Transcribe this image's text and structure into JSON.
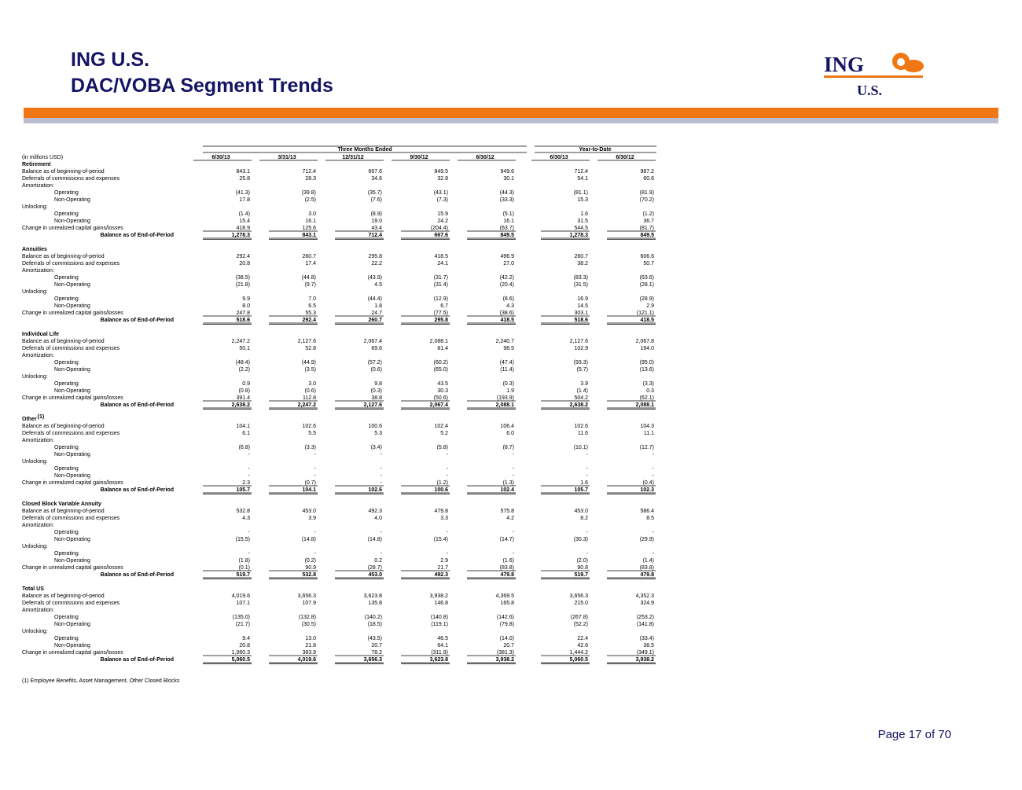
{
  "header": {
    "company": "ING U.S.",
    "title": "DAC/VOBA Segment Trends"
  },
  "logo": {
    "name": "ING",
    "sub": "U.S."
  },
  "table": {
    "group_headers": [
      "Three Months Ended",
      "Year-to-Date"
    ],
    "units": "(in millions USD)",
    "columns": [
      "6/30/13",
      "3/31/13",
      "12/31/12",
      "9/30/12",
      "6/30/12",
      "6/30/13",
      "6/30/12"
    ],
    "sections": [
      {
        "title": "Retirement",
        "rows": [
          {
            "label": "Balance as of beginning-of-period",
            "values": [
              "843.1",
              "712.4",
              "667.6",
              "849.5",
              "949.6",
              "712.4",
              "987.2"
            ]
          },
          {
            "label": "Deferrals of commissions and expenses",
            "values": [
              "25.8",
              "28.3",
              "34.6",
              "32.8",
              "30.1",
              "54.1",
              "60.6"
            ]
          },
          {
            "label": "Amortization:"
          },
          {
            "label": "Operating",
            "values": [
              "(41.3)",
              "(39.8)",
              "(35.7)",
              "(43.1)",
              "(44.3)",
              "(81.1)",
              "(81.9)"
            ]
          },
          {
            "label": "Non-Operating",
            "values": [
              "17.8",
              "(2.5)",
              "(7.6)",
              "(7.3)",
              "(33.3)",
              "15.3",
              "(70.2)"
            ]
          },
          {
            "label": "Unlocking:"
          },
          {
            "label": "Operating",
            "values": [
              "(1.4)",
              "3.0",
              "(8.9)",
              "15.9",
              "(5.1)",
              "1.6",
              "(1.2)"
            ]
          },
          {
            "label": "Non-Operating",
            "values": [
              "15.4",
              "16.1",
              "19.0",
              "24.2",
              "16.1",
              "31.5",
              "36.7"
            ]
          },
          {
            "label": "Change in unrealized capital gains/losses",
            "values": [
              "418.9",
              "125.6",
              "43.4",
              "(204.4)",
              "(63.7)",
              "544.5",
              "(81.7)"
            ]
          },
          {
            "label": "Balance as of End-of-Period",
            "values": [
              "1,278.3",
              "843.1",
              "712.4",
              "667.6",
              "849.5",
              "1,278.3",
              "849.5"
            ]
          }
        ]
      },
      {
        "title": "Annuities",
        "rows": [
          {
            "label": "Balance as of beginning-of-period",
            "values": [
              "292.4",
              "260.7",
              "295.8",
              "418.5",
              "496.9",
              "260.7",
              "606.6"
            ]
          },
          {
            "label": "Deferrals of commissions and expenses",
            "values": [
              "20.8",
              "17.4",
              "22.2",
              "24.1",
              "27.0",
              "38.2",
              "50.7"
            ]
          },
          {
            "label": "Amortization:"
          },
          {
            "label": "Operating",
            "values": [
              "(38.5)",
              "(44.8)",
              "(43.9)",
              "(31.7)",
              "(42.2)",
              "(83.3)",
              "(63.6)"
            ]
          },
          {
            "label": "Non-Operating",
            "values": [
              "(21.8)",
              "(9.7)",
              "4.5",
              "(31.4)",
              "(20.4)",
              "(31.5)",
              "(28.1)"
            ]
          },
          {
            "label": "Unlocking:"
          },
          {
            "label": "Operating",
            "values": [
              "9.9",
              "7.0",
              "(44.4)",
              "(12.9)",
              "(8.6)",
              "16.9",
              "(28.9)"
            ]
          },
          {
            "label": "Non-Operating",
            "values": [
              "8.0",
              "6.5",
              "1.8",
              "6.7",
              "4.3",
              "14.5",
              "2.9"
            ]
          },
          {
            "label": "Change in unrealized capital gains/losses",
            "values": [
              "247.8",
              "55.3",
              "24.7",
              "(77.5)",
              "(38.6)",
              "303.1",
              "(121.1)"
            ]
          },
          {
            "label": "Balance as of End-of-Period",
            "values": [
              "518.6",
              "292.4",
              "260.7",
              "295.8",
              "418.5",
              "518.6",
              "418.5"
            ]
          }
        ]
      },
      {
        "title": "Individual Life",
        "rows": [
          {
            "label": "Balance as of beginning-of-period",
            "values": [
              "2,247.2",
              "2,127.6",
              "2,067.4",
              "2,088.1",
              "2,240.7",
              "2,127.6",
              "2,067.8"
            ]
          },
          {
            "label": "Deferrals of commissions and expenses",
            "values": [
              "50.1",
              "52.8",
              "69.6",
              "81.4",
              "98.5",
              "102.9",
              "194.0"
            ]
          },
          {
            "label": "Amortization:"
          },
          {
            "label": "Operating",
            "values": [
              "(48.4)",
              "(44.9)",
              "(57.2)",
              "(60.2)",
              "(47.4)",
              "(93.3)",
              "(95.0)"
            ]
          },
          {
            "label": "Non-Operating",
            "values": [
              "(2.2)",
              "(3.5)",
              "(0.6)",
              "(65.0)",
              "(11.4)",
              "(5.7)",
              "(13.6)"
            ]
          },
          {
            "label": "Unlocking:"
          },
          {
            "label": "Operating",
            "values": [
              "0.9",
              "3.0",
              "9.8",
              "43.5",
              "(0.3)",
              "3.9",
              "(3.3)"
            ]
          },
          {
            "label": "Non-Operating",
            "values": [
              "(0.8)",
              "(0.6)",
              "(0.3)",
              "30.3",
              "1.9",
              "(1.4)",
              "0.3"
            ]
          },
          {
            "label": "Change in unrealized capital gains/losses",
            "values": [
              "391.4",
              "112.8",
              "38.8",
              "(50.6)",
              "(193.9)",
              "504.2",
              "(62.1)"
            ]
          },
          {
            "label": "Balance as of End-of-Period",
            "values": [
              "2,638.2",
              "2,247.2",
              "2,127.6",
              "2,067.4",
              "2,088.1",
              "2,638.2",
              "2,088.1"
            ]
          }
        ]
      },
      {
        "title": "Other",
        "title_note": "(1)",
        "rows": [
          {
            "label": "Balance as of beginning-of-period",
            "values": [
              "104.1",
              "102.6",
              "100.6",
              "102.4",
              "106.4",
              "102.6",
              "104.3"
            ]
          },
          {
            "label": "Deferrals of commissions and expenses",
            "values": [
              "6.1",
              "5.5",
              "5.3",
              "5.2",
              "6.0",
              "11.6",
              "11.1"
            ]
          },
          {
            "label": "Amortization:"
          },
          {
            "label": "Operating",
            "values": [
              "(6.8)",
              "(3.3)",
              "(3.4)",
              "(5.8)",
              "(8.7)",
              "(10.1)",
              "(12.7)"
            ]
          },
          {
            "label": "Non-Operating",
            "values": [
              "-",
              "-",
              "-",
              "-",
              "-",
              "-",
              "-"
            ]
          },
          {
            "label": "Unlocking:"
          },
          {
            "label": "Operating",
            "values": [
              "-",
              "-",
              "-",
              "-",
              "-",
              "-",
              "-"
            ]
          },
          {
            "label": "Non-Operating",
            "values": [
              "-",
              "-",
              "-",
              "-",
              "-",
              "-",
              "-"
            ]
          },
          {
            "label": "Change in unrealized capital gains/losses",
            "values": [
              "2.3",
              "(0.7)",
              "-",
              "(1.2)",
              "(1.3)",
              "1.6",
              "(0.4)"
            ]
          },
          {
            "label": "Balance as of End-of-Period",
            "values": [
              "105.7",
              "104.1",
              "102.6",
              "100.6",
              "102.4",
              "105.7",
              "102.3"
            ]
          }
        ]
      },
      {
        "title": "Closed Block Variable Annuity",
        "rows": [
          {
            "label": "Balance as of beginning-of-period",
            "values": [
              "532.8",
              "453.0",
              "492.3",
              "479.8",
              "575.8",
              "453.0",
              "586.4"
            ]
          },
          {
            "label": "Deferrals of commissions and expenses",
            "values": [
              "4.3",
              "3.9",
              "4.0",
              "3.3",
              "4.2",
              "8.2",
              "8.5"
            ]
          },
          {
            "label": "Amortization:"
          },
          {
            "label": "Operating",
            "values": [
              "-",
              "-",
              "-",
              "-",
              "-",
              "-",
              "-"
            ]
          },
          {
            "label": "Non-Operating",
            "values": [
              "(15.5)",
              "(14.8)",
              "(14.8)",
              "(15.4)",
              "(14.7)",
              "(30.3)",
              "(29.9)"
            ]
          },
          {
            "label": "Unlocking:"
          },
          {
            "label": "Operating",
            "values": [
              "-",
              "-",
              "-",
              "-",
              "-",
              "-",
              "-"
            ]
          },
          {
            "label": "Non-Operating",
            "values": [
              "(1.8)",
              "(0.2)",
              "0.2",
              "2.9",
              "(1.6)",
              "(2.0)",
              "(1.4)"
            ]
          },
          {
            "label": "Change in unrealized capital gains/losses",
            "values": [
              "(0.1)",
              "90.9",
              "(28.7)",
              "21.7",
              "(83.8)",
              "90.8",
              "(83.8)"
            ]
          },
          {
            "label": "Balance as of End-of-Period",
            "values": [
              "519.7",
              "532.8",
              "453.0",
              "492.3",
              "479.8",
              "519.7",
              "479.8"
            ]
          }
        ]
      },
      {
        "title": "Total US",
        "rows": [
          {
            "label": "Balance as of beginning-of-period",
            "values": [
              "4,019.6",
              "3,656.3",
              "3,623.8",
              "3,938.2",
              "4,369.5",
              "3,656.3",
              "4,352.3"
            ]
          },
          {
            "label": "Deferrals of commissions and expenses",
            "values": [
              "107.1",
              "107.9",
              "135.8",
              "146.8",
              "165.8",
              "215.0",
              "324.9"
            ]
          },
          {
            "label": "Amortization:"
          },
          {
            "label": "Operating",
            "values": [
              "(135.0)",
              "(132.8)",
              "(140.2)",
              "(140.8)",
              "(142.6)",
              "(267.8)",
              "(253.2)"
            ]
          },
          {
            "label": "Non-Operating",
            "values": [
              "(21.7)",
              "(30.5)",
              "(18.5)",
              "(119.1)",
              "(79.8)",
              "(52.2)",
              "(141.8)"
            ]
          },
          {
            "label": "Unlocking:"
          },
          {
            "label": "Operating",
            "values": [
              "9.4",
              "13.0",
              "(43.5)",
              "46.5",
              "(14.0)",
              "22.4",
              "(33.4)"
            ]
          },
          {
            "label": "Non-Operating",
            "values": [
              "20.8",
              "21.8",
              "20.7",
              "64.1",
              "20.7",
              "42.6",
              "38.5"
            ]
          },
          {
            "label": "Change in unrealized capital gains/losses",
            "values": [
              "1,060.3",
              "383.9",
              "78.2",
              "(311.9)",
              "(381.3)",
              "1,444.2",
              "(349.1)"
            ]
          },
          {
            "label": "Balance as of End-of-Period",
            "values": [
              "5,060.5",
              "4,019.6",
              "3,656.3",
              "3,623.8",
              "3,938.2",
              "5,060.5",
              "3,938.2"
            ]
          }
        ]
      }
    ]
  },
  "footnote": "(1) Employee Benefits, Asset Management, Other Closed Blocks",
  "page": "Page 17 of 70"
}
